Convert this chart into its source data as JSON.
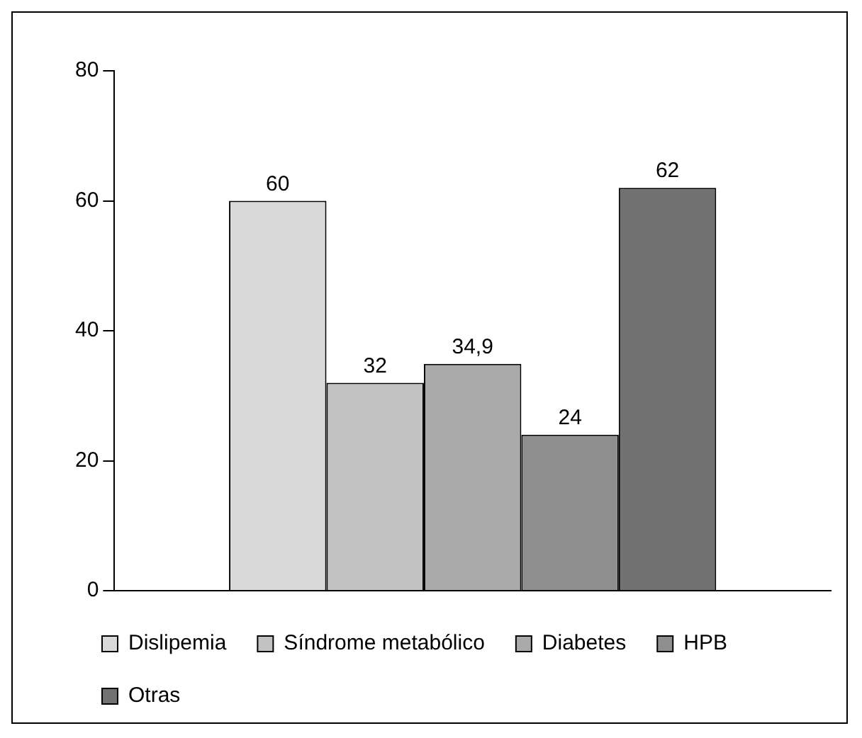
{
  "chart_data": {
    "type": "bar",
    "categories": [
      null
    ],
    "ylim": [
      0,
      80
    ],
    "yticks": [
      0,
      20,
      40,
      60,
      80
    ],
    "grid": false,
    "legend": "bottom",
    "series": [
      {
        "name": "Dislipemia",
        "color": "#d9d9d9",
        "values": [
          60
        ],
        "value_labels": [
          "60"
        ]
      },
      {
        "name": "Síndrome metabólico",
        "color": "#c2c2c2",
        "values": [
          32
        ],
        "value_labels": [
          "32"
        ]
      },
      {
        "name": "Diabetes",
        "color": "#aaaaaa",
        "values": [
          34.9
        ],
        "value_labels": [
          "34,9"
        ]
      },
      {
        "name": "HPB",
        "color": "#8f8f8f",
        "values": [
          24
        ],
        "value_labels": [
          "24"
        ]
      },
      {
        "name": "Otras",
        "color": "#717171",
        "values": [
          62
        ],
        "value_labels": [
          "62"
        ]
      }
    ]
  }
}
